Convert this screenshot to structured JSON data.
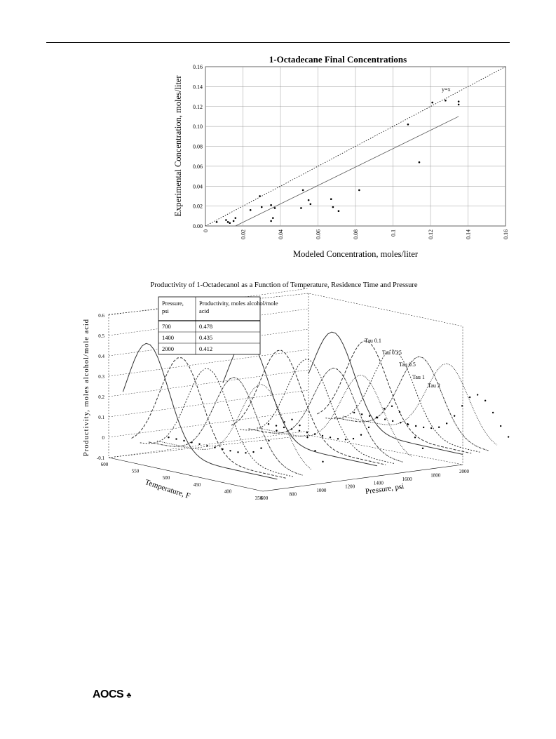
{
  "page": {
    "footer_logo": "AOCS"
  },
  "chart_data": [
    {
      "type": "scatter",
      "title": "1-Octadecane Final Concentrations",
      "xlabel": "Modeled Concentration, moles/liter",
      "ylabel": "Experimental Concentration, moles/liter",
      "xlim": [
        0,
        0.16
      ],
      "ylim": [
        0,
        0.16
      ],
      "xticks": [
        "0",
        "0.02",
        "0.04",
        "0.06",
        "0.08",
        "0.1",
        "0.12",
        "0.14",
        "0.16"
      ],
      "yticks": [
        "0.00",
        "0.02",
        "0.04",
        "0.06",
        "0.08",
        "0.10",
        "0.12",
        "0.14",
        "0.16"
      ],
      "grid": true,
      "reference_line_label": "y=x",
      "reference_line": {
        "x": [
          0,
          0.16
        ],
        "y": [
          0,
          0.16
        ],
        "style": "dotted"
      },
      "fit_line": {
        "x": [
          0.016,
          0.135
        ],
        "y": [
          0.0,
          0.11
        ],
        "style": "solid"
      },
      "points": {
        "x": [
          0.006,
          0.011,
          0.012,
          0.013,
          0.015,
          0.016,
          0.024,
          0.029,
          0.03,
          0.035,
          0.035,
          0.036,
          0.037,
          0.051,
          0.052,
          0.055,
          0.056,
          0.067,
          0.068,
          0.071,
          0.082,
          0.108,
          0.114,
          0.121,
          0.128,
          0.135,
          0.135
        ],
        "y": [
          0.004,
          0.006,
          0.004,
          0.003,
          0.005,
          0.008,
          0.016,
          0.03,
          0.019,
          0.021,
          0.005,
          0.008,
          0.018,
          0.018,
          0.036,
          0.026,
          0.022,
          0.027,
          0.019,
          0.015,
          0.036,
          0.102,
          0.064,
          0.124,
          0.126,
          0.125,
          0.122
        ]
      }
    },
    {
      "type": "line",
      "projection": "3d",
      "title": "Productivity of 1-Octadecanol as a Function of Temperature, Residence Time and Pressure",
      "xlabel": "Temperature, F",
      "ylabel": "Pressure, psi",
      "zlabel": "Productivity, moles alcohol/mole acid",
      "x_ticks": [
        "600",
        "550",
        "500",
        "450",
        "400",
        "350"
      ],
      "y_ticks": [
        "600",
        "800",
        "1000",
        "1200",
        "1400",
        "1600",
        "1800",
        "2000"
      ],
      "z_ticks": [
        "0.6",
        "0.5",
        "0.4",
        "0.3",
        "0.2",
        "0.1",
        "0",
        "-0.1"
      ],
      "xlim": [
        600,
        350
      ],
      "ylim": [
        600,
        2000
      ],
      "zlim": [
        -0.1,
        0.6
      ],
      "series_labels": [
        "Tau 0.1",
        "Tau 0.25",
        "Tau 0.5",
        "Tau 1",
        "Tau 2"
      ],
      "pressure_groups": [
        700,
        1400,
        2000
      ],
      "curve_peaks": {
        "700": [
          0.478,
          0.43,
          0.39,
          0.36,
          0.34
        ],
        "1400": [
          0.435,
          0.4,
          0.37,
          0.34,
          0.32
        ],
        "2000": [
          0.412,
          0.39,
          0.36,
          0.34,
          0.32
        ]
      },
      "legend_table": {
        "headers": [
          "Pressure, psi",
          "Productivity, moles alcohol/mole acid"
        ],
        "rows": [
          [
            "700",
            "0.478"
          ],
          [
            "1400",
            "0.435"
          ],
          [
            "2000",
            "0.412"
          ]
        ]
      }
    }
  ]
}
